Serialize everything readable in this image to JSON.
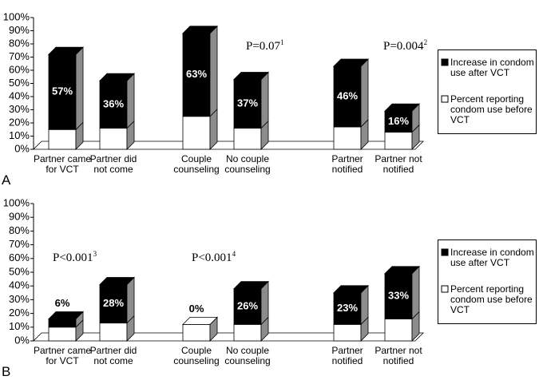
{
  "chart_data": [
    {
      "type": "bar",
      "stacked": true,
      "panel_label": "A",
      "categories": [
        "Partner came for VCT",
        "Partner did not come",
        "Couple counseling",
        "No couple counseling",
        "Partner notified",
        "Partner not notified"
      ],
      "series": [
        {
          "name": "Percent reporting condom use before VCT",
          "color": "#ffffff",
          "values": [
            15,
            16,
            25,
            16,
            17,
            13
          ]
        },
        {
          "name": "Increase in condom use after VCT",
          "color": "#000000",
          "values": [
            57,
            36,
            63,
            37,
            46,
            16
          ],
          "value_labels": [
            "57%",
            "36%",
            "63%",
            "37%",
            "46%",
            "16%"
          ]
        }
      ],
      "ylim": [
        0,
        100
      ],
      "yticks": [
        {
          "value": 0,
          "label": "0%"
        },
        {
          "value": 10,
          "label": "10%"
        },
        {
          "value": 20,
          "label": "20%"
        },
        {
          "value": 30,
          "label": "30%"
        },
        {
          "value": 40,
          "label": "40%"
        },
        {
          "value": 50,
          "label": "50%"
        },
        {
          "value": 60,
          "label": "60%"
        },
        {
          "value": 70,
          "label": "70%"
        },
        {
          "value": 80,
          "label": "80%"
        },
        {
          "value": 90,
          "label": "90%"
        },
        {
          "value": 100,
          "label": "100%"
        }
      ],
      "annotations": [
        {
          "text": "P=0.07",
          "sup": "1"
        },
        {
          "text": "P=0.004",
          "sup": "2"
        }
      ]
    },
    {
      "type": "bar",
      "stacked": true,
      "panel_label": "B",
      "categories": [
        "Partner came for VCT",
        "Partner did not come",
        "Couple counseling",
        "No couple counseling",
        "Partner notified",
        "Partner not notified"
      ],
      "series": [
        {
          "name": "Percent reporting condom use before VCT",
          "color": "#ffffff",
          "values": [
            10,
            13,
            12,
            12,
            12,
            16
          ]
        },
        {
          "name": "Increase in condom use after VCT",
          "color": "#000000",
          "values": [
            6,
            28,
            0,
            26,
            23,
            33
          ],
          "value_labels": [
            "6%",
            "28%",
            "0%",
            "26%",
            "23%",
            "33%"
          ]
        }
      ],
      "ylim": [
        0,
        100
      ],
      "yticks": [
        {
          "value": 0,
          "label": "0%"
        },
        {
          "value": 10,
          "label": "10%"
        },
        {
          "value": 20,
          "label": "20%"
        },
        {
          "value": 30,
          "label": "30%"
        },
        {
          "value": 40,
          "label": "40%"
        },
        {
          "value": 50,
          "label": "50%"
        },
        {
          "value": 60,
          "label": "60%"
        },
        {
          "value": 70,
          "label": "70%"
        },
        {
          "value": 80,
          "label": "80%"
        },
        {
          "value": 90,
          "label": "90%"
        },
        {
          "value": 100,
          "label": "100%"
        }
      ],
      "annotations": [
        {
          "text": "P<0.001",
          "sup": "3"
        },
        {
          "text": "P<0.001",
          "sup": "4"
        }
      ]
    }
  ]
}
